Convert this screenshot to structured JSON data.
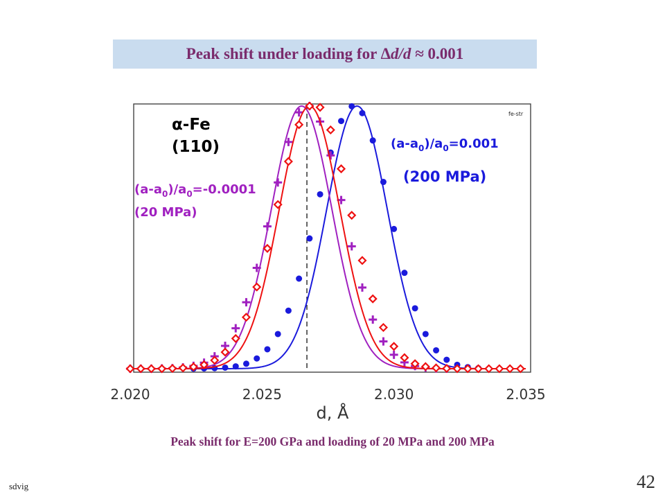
{
  "slide": {
    "title_prefix": "Peak shift under loading for ",
    "title_delta": "Δ",
    "title_italic": "d/d",
    "title_suffix": " ≈ 0.001",
    "caption": "Peak shift for E=200 GPa and loading of 20 MPa and 200 MPa",
    "footer_left": "sdvig",
    "page_number": "42"
  },
  "chart_data": {
    "type": "line",
    "xlabel": "d, Å",
    "ylabel": "",
    "xlim": [
      2.02,
      2.035
    ],
    "ylim": [
      0,
      1.0
    ],
    "x_ticks": [
      "2.020",
      "2.025",
      "2.030",
      "2.035"
    ],
    "x_tick_values": [
      2.02,
      2.025,
      2.03,
      2.035
    ],
    "grid": false,
    "reference_line_x": 2.0267,
    "corner_label": "fe-str",
    "annotations": [
      {
        "text": "α-Fe",
        "color": "#000000"
      },
      {
        "text": "(110)",
        "color": "#000000"
      },
      {
        "text": "(a-a0)/a0=-0.0001",
        "color": "#a020c0"
      },
      {
        "text": "(20 MPa)",
        "color": "#a020c0"
      },
      {
        "text": "(a-a0)/a0=0.001",
        "color": "#1a1adc"
      },
      {
        "text": "(200 MPa)",
        "color": "#1a1adc"
      }
    ],
    "series": [
      {
        "marker": "plus",
        "color": "#a020c0",
        "peak_center": 2.0265,
        "peak_sigma": 0.00115,
        "peak_height": 1.0,
        "x": [
          2.02,
          2.0204,
          2.0208,
          2.0212,
          2.0216,
          2.022,
          2.0224,
          2.0228,
          2.0232,
          2.0236,
          2.024,
          2.0244,
          2.0248,
          2.0252,
          2.0256,
          2.026,
          2.0264,
          2.0268,
          2.0272,
          2.0276,
          2.028,
          2.0284,
          2.0288,
          2.0292,
          2.0296,
          2.03,
          2.0304,
          2.0308,
          2.0312,
          2.0316,
          2.032
        ],
        "values": [
          0.0,
          0.0,
          0.0,
          0.001,
          0.002,
          0.005,
          0.011,
          0.023,
          0.047,
          0.087,
          0.154,
          0.253,
          0.384,
          0.542,
          0.709,
          0.863,
          0.976,
          1.0,
          0.941,
          0.812,
          0.642,
          0.466,
          0.309,
          0.187,
          0.104,
          0.053,
          0.024,
          0.01,
          0.004,
          0.001,
          0.0
        ]
      },
      {
        "marker": "diamond",
        "color": "#ee1111",
        "peak_center": 2.0268,
        "peak_sigma": 0.00115,
        "peak_height": 1.0,
        "x": [
          2.02,
          2.0204,
          2.0208,
          2.0212,
          2.0216,
          2.022,
          2.0224,
          2.0228,
          2.0232,
          2.0236,
          2.024,
          2.0244,
          2.0248,
          2.0252,
          2.0256,
          2.026,
          2.0264,
          2.0268,
          2.0272,
          2.0276,
          2.028,
          2.0284,
          2.0288,
          2.0292,
          2.0296,
          2.03,
          2.0304,
          2.0308,
          2.0312,
          2.0316,
          2.032,
          2.0324,
          2.0328,
          2.0332,
          2.0336,
          2.034,
          2.0344,
          2.0348
        ],
        "values": [
          0.0,
          0.0,
          0.0,
          0.0,
          0.001,
          0.003,
          0.007,
          0.015,
          0.032,
          0.063,
          0.115,
          0.196,
          0.311,
          0.458,
          0.625,
          0.789,
          0.929,
          1.0,
          0.995,
          0.909,
          0.761,
          0.584,
          0.412,
          0.266,
          0.157,
          0.085,
          0.042,
          0.019,
          0.008,
          0.003,
          0.001,
          0.0,
          0.0,
          0.0,
          0.0,
          0.0,
          0.0,
          0.0
        ]
      },
      {
        "marker": "circle",
        "color": "#1a1adc",
        "peak_center": 2.0286,
        "peak_sigma": 0.00115,
        "peak_height": 1.0,
        "x": [
          2.0224,
          2.0228,
          2.0232,
          2.0236,
          2.024,
          2.0244,
          2.0248,
          2.0252,
          2.0256,
          2.026,
          2.0264,
          2.0268,
          2.0272,
          2.0276,
          2.028,
          2.0284,
          2.0288,
          2.0292,
          2.0296,
          2.03,
          2.0304,
          2.0308,
          2.0312,
          2.0316,
          2.032,
          2.0324,
          2.0328,
          2.0332
        ],
        "values": [
          0.0,
          0.001,
          0.002,
          0.004,
          0.009,
          0.019,
          0.039,
          0.074,
          0.132,
          0.221,
          0.343,
          0.496,
          0.664,
          0.823,
          0.943,
          0.999,
          0.973,
          0.869,
          0.711,
          0.532,
          0.365,
          0.23,
          0.132,
          0.07,
          0.034,
          0.015,
          0.006,
          0.002
        ]
      }
    ]
  }
}
